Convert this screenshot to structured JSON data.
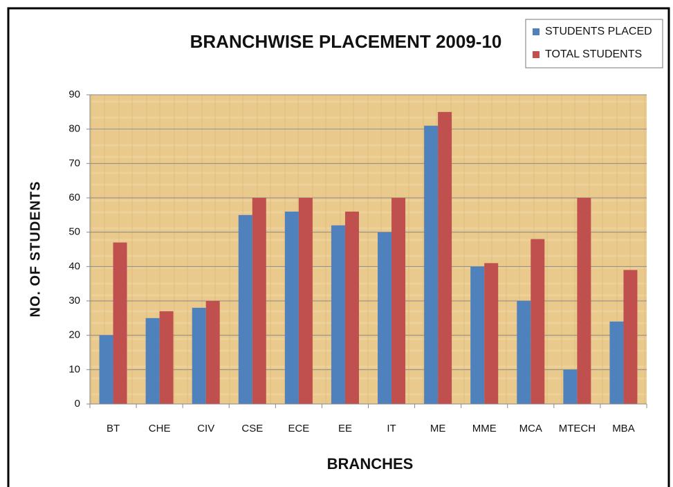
{
  "chart_data": {
    "type": "bar",
    "title": "BRANCHWISE PLACEMENT  2009-10",
    "x_label": "BRANCHES",
    "y_label": "NO. OF  STUDENTS",
    "categories": [
      "BT",
      "CHE",
      "CIV",
      "CSE",
      "ECE",
      "EE",
      "IT",
      "ME",
      "MME",
      "MCA",
      "MTECH",
      "MBA"
    ],
    "series": [
      {
        "name": "STUDENTS PLACED",
        "color": "#4f81bd",
        "values": [
          20,
          25,
          28,
          55,
          56,
          52,
          50,
          81,
          40,
          30,
          10,
          24
        ]
      },
      {
        "name": "TOTAL STUDENTS",
        "color": "#c0504d",
        "values": [
          47,
          27,
          30,
          60,
          60,
          56,
          60,
          85,
          41,
          48,
          60,
          39
        ]
      }
    ],
    "ylim": [
      0,
      90
    ],
    "yticks": [
      0,
      10,
      20,
      30,
      40,
      50,
      60,
      70,
      80,
      90
    ],
    "grid": true,
    "legend": "top-right"
  }
}
